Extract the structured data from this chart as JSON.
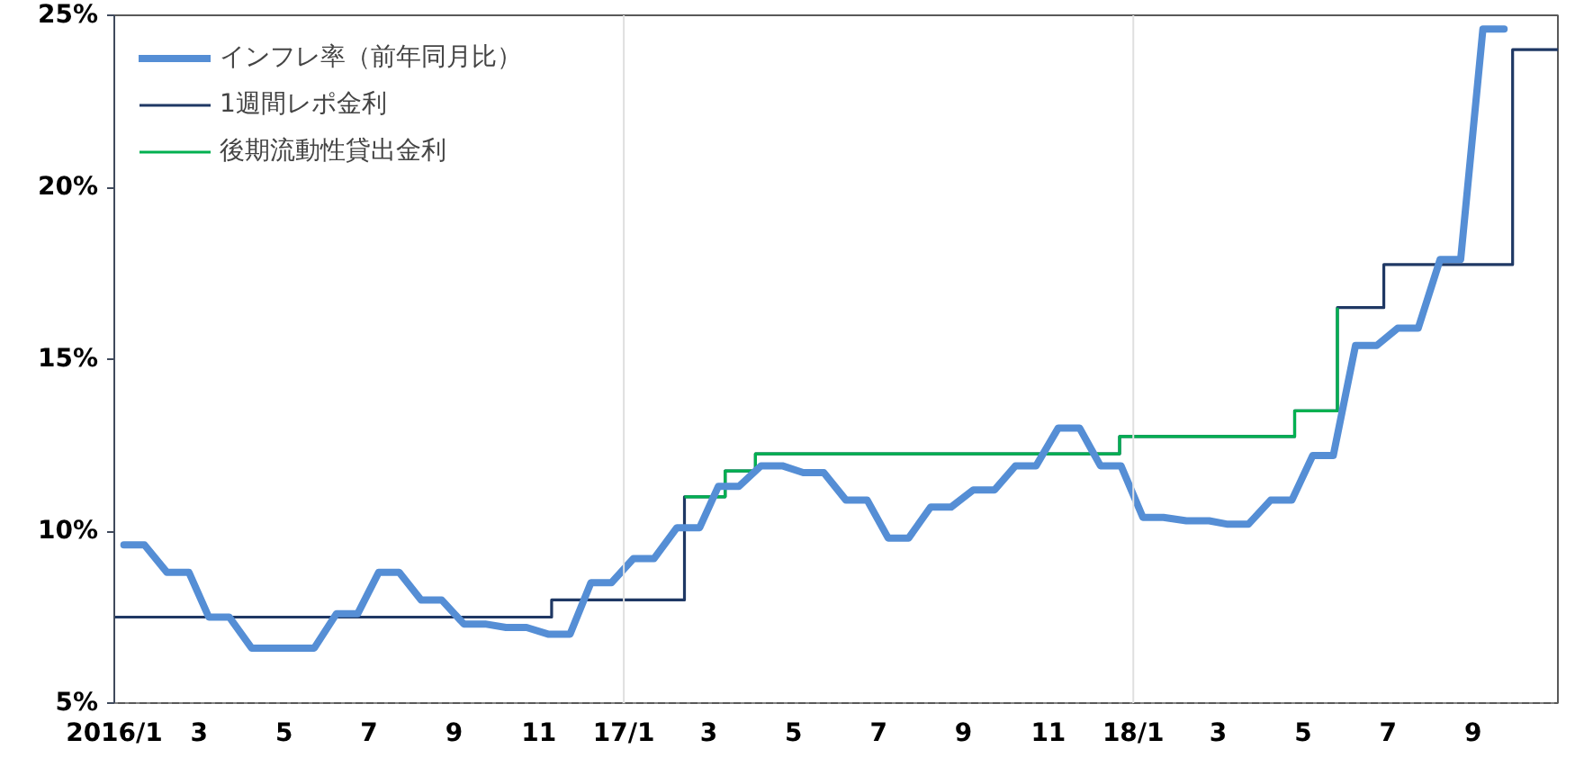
{
  "chart_data": {
    "type": "line",
    "series": [
      {
        "name": "インフレ率（前年同月比）",
        "color": "#558ed5",
        "x": [
          "2016-01-08",
          "2016-01-23",
          "2016-02-08",
          "2016-02-23",
          "2016-03-08",
          "2016-03-23",
          "2016-04-08",
          "2016-04-23",
          "2016-05-08",
          "2016-05-23",
          "2016-06-08",
          "2016-06-23",
          "2016-07-08",
          "2016-07-23",
          "2016-08-08",
          "2016-08-23",
          "2016-09-08",
          "2016-09-23",
          "2016-10-08",
          "2016-10-23",
          "2016-11-08",
          "2016-11-23",
          "2016-12-08",
          "2016-12-23",
          "2017-01-08",
          "2017-01-23",
          "2017-02-08",
          "2017-02-23",
          "2017-03-08",
          "2017-03-23",
          "2017-04-08",
          "2017-04-23",
          "2017-05-08",
          "2017-05-23",
          "2017-06-08",
          "2017-06-23",
          "2017-07-08",
          "2017-07-23",
          "2017-08-08",
          "2017-08-23",
          "2017-09-08",
          "2017-09-23",
          "2017-10-08",
          "2017-10-23",
          "2017-11-08",
          "2017-11-23",
          "2017-12-08",
          "2017-12-23",
          "2018-01-08",
          "2018-01-23",
          "2018-02-08",
          "2018-02-23",
          "2018-03-08",
          "2018-03-23",
          "2018-04-08",
          "2018-04-23",
          "2018-05-08",
          "2018-05-23",
          "2018-06-08",
          "2018-06-23",
          "2018-07-08",
          "2018-07-23",
          "2018-08-08",
          "2018-08-23",
          "2018-09-08",
          "2018-09-23"
        ],
        "values": [
          9.6,
          9.6,
          8.8,
          8.8,
          7.5,
          7.5,
          6.6,
          6.6,
          6.6,
          6.6,
          7.6,
          7.6,
          8.8,
          8.8,
          8.0,
          8.0,
          7.3,
          7.3,
          7.2,
          7.2,
          7.0,
          7.0,
          8.5,
          8.5,
          9.2,
          9.2,
          10.1,
          10.1,
          11.3,
          11.3,
          11.9,
          11.9,
          11.7,
          11.7,
          10.9,
          10.9,
          9.8,
          9.8,
          10.7,
          10.7,
          11.2,
          11.2,
          11.9,
          11.9,
          13.0,
          13.0,
          11.9,
          11.9,
          10.4,
          10.4,
          10.3,
          10.3,
          10.2,
          10.2,
          10.9,
          10.9,
          12.2,
          12.2,
          15.4,
          15.4,
          15.9,
          15.9,
          17.9,
          17.9,
          24.6,
          24.6
        ]
      },
      {
        "name": "1週間レポ金利",
        "color": "#1f3864",
        "type": "step",
        "x": [
          "2016-01-01",
          "2016-11-10",
          "2017-02-13",
          "2017-03-13",
          "2017-04-04",
          "2017-12-22",
          "2018-04-25",
          "2018-05-26",
          "2018-06-28",
          "2018-09-29",
          "2018-11-01"
        ],
        "values": [
          7.5,
          8.0,
          11.0,
          11.75,
          12.25,
          12.75,
          13.5,
          16.5,
          17.75,
          24.0,
          24.0
        ]
      },
      {
        "name": "後期流動性貸出金利",
        "color": "#00b050",
        "type": "step",
        "x": [
          "2017-02-13",
          "2017-03-13",
          "2017-04-04",
          "2017-12-22",
          "2018-04-25",
          "2018-05-26"
        ],
        "values": [
          11.0,
          11.75,
          12.25,
          12.75,
          13.5,
          16.5
        ]
      }
    ],
    "xlim": [
      "2016-01",
      "2018-11"
    ],
    "xticks": [
      {
        "value": "2016-01",
        "label": "2016/1"
      },
      {
        "value": "2016-03",
        "label": "3"
      },
      {
        "value": "2016-05",
        "label": "5"
      },
      {
        "value": "2016-07",
        "label": "7"
      },
      {
        "value": "2016-09",
        "label": "9"
      },
      {
        "value": "2016-11",
        "label": "11"
      },
      {
        "value": "2017-01",
        "label": "17/1"
      },
      {
        "value": "2017-03",
        "label": "3"
      },
      {
        "value": "2017-05",
        "label": "5"
      },
      {
        "value": "2017-07",
        "label": "7"
      },
      {
        "value": "2017-09",
        "label": "9"
      },
      {
        "value": "2017-11",
        "label": "11"
      },
      {
        "value": "2018-01",
        "label": "18/1"
      },
      {
        "value": "2018-03",
        "label": "3"
      },
      {
        "value": "2018-05",
        "label": "5"
      },
      {
        "value": "2018-07",
        "label": "7"
      },
      {
        "value": "2018-09",
        "label": "9"
      }
    ],
    "ylim": [
      5,
      25
    ],
    "yticks": [
      {
        "value": 5,
        "label": "5%"
      },
      {
        "value": 10,
        "label": "10%"
      },
      {
        "value": 15,
        "label": "15%"
      },
      {
        "value": 20,
        "label": "20%"
      },
      {
        "value": 25,
        "label": "25%"
      }
    ],
    "ref_lines": [
      {
        "axis": "x",
        "value": "2017-01",
        "color": "#e0e0e0"
      },
      {
        "axis": "x",
        "value": "2018-01",
        "color": "#e0e0e0"
      }
    ],
    "grid": false,
    "legend": "top left"
  }
}
